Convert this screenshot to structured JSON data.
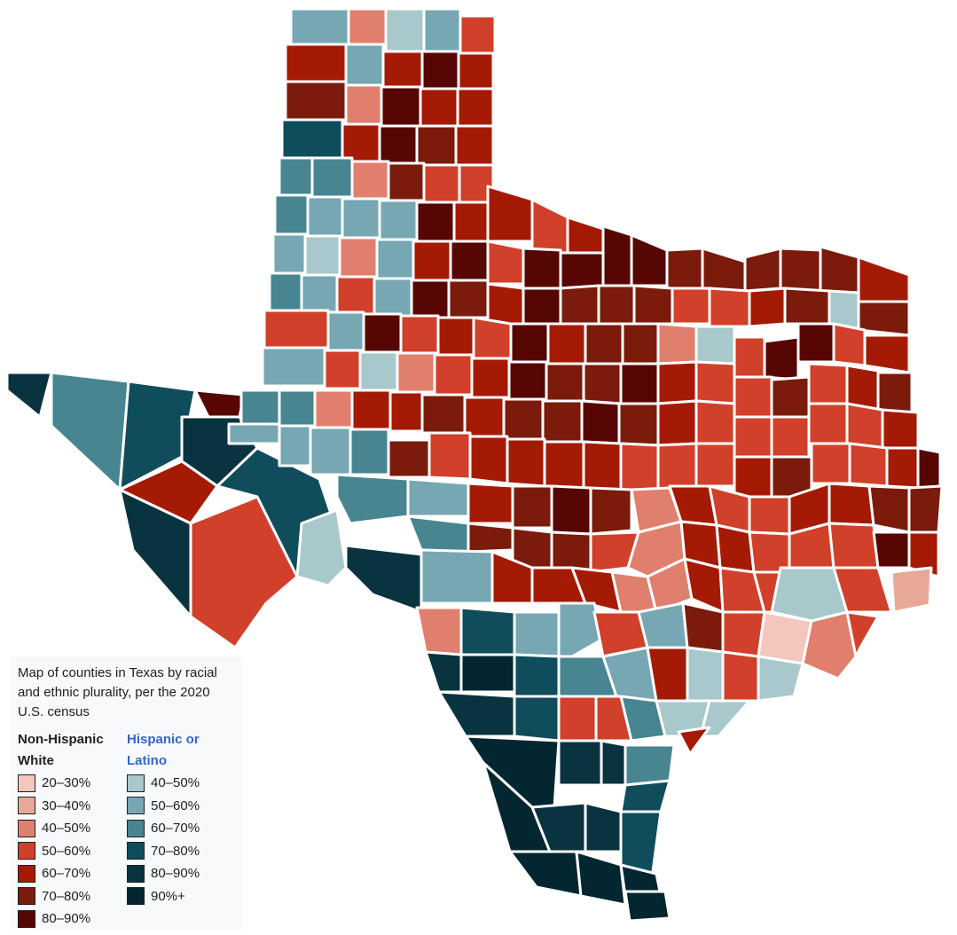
{
  "colors": {
    "nhw_20_30": "#f4c6bd",
    "nhw_30_40": "#e8a898",
    "nhw_40_50": "#e07f6d",
    "nhw_50_60": "#d1402a",
    "nhw_60_70": "#a51a05",
    "nhw_70_80": "#7a1b0c",
    "nhw_80_90": "#560704",
    "hl_40_50": "#a8c8cb",
    "hl_50_60": "#76a7b3",
    "hl_60_70": "#478591",
    "hl_70_80": "#0f4c5c",
    "hl_80_90": "#0a3340",
    "hl_90_plus": "#042630"
  },
  "legend": {
    "caption": "Map of counties in Texas by racial and ethnic plurality, per the 2020 U.S. census",
    "nhw_heading": "Non-Hispanic White",
    "hl_heading": "Hispanic or Latino",
    "nhw_items": [
      {
        "label": "20–30%",
        "color": "#f4c6bd"
      },
      {
        "label": "30–40%",
        "color": "#e8a898"
      },
      {
        "label": "40–50%",
        "color": "#e07f6d"
      },
      {
        "label": "50–60%",
        "color": "#d1402a"
      },
      {
        "label": "60–70%",
        "color": "#a51a05"
      },
      {
        "label": "70–80%",
        "color": "#7a1b0c"
      },
      {
        "label": "80–90%",
        "color": "#560704"
      }
    ],
    "hl_items": [
      {
        "label": "40–50%",
        "color": "#a8c8cb"
      },
      {
        "label": "50–60%",
        "color": "#76a7b3"
      },
      {
        "label": "60–70%",
        "color": "#478591"
      },
      {
        "label": "70–80%",
        "color": "#0f4c5c"
      },
      {
        "label": "80–90%",
        "color": "#0a3340"
      },
      {
        "label": "90%+",
        "color": "#042630"
      }
    ]
  }
}
